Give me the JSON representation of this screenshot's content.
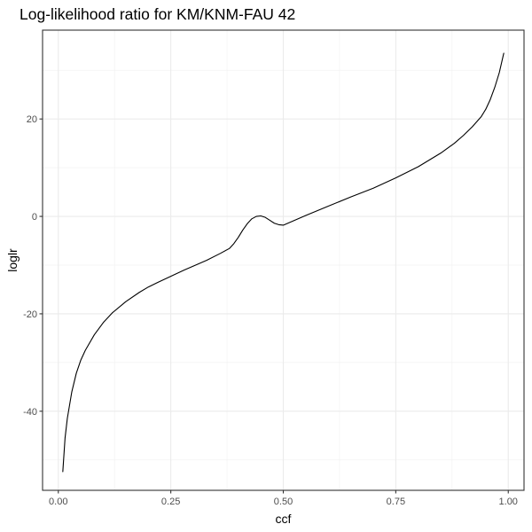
{
  "chart_data": {
    "type": "line",
    "title": "Log-likelihood ratio for KM/KNM-FAU 42",
    "xlabel": "ccf",
    "ylabel": "loglr",
    "xlim": [
      -0.035,
      1.035
    ],
    "ylim": [
      -56.24,
      38.24
    ],
    "x_ticks": [
      0.0,
      0.25,
      0.5,
      0.75,
      1.0
    ],
    "x_tick_labels": [
      "0.00",
      "0.25",
      "0.50",
      "0.75",
      "1.00"
    ],
    "y_ticks": [
      -40,
      -20,
      0,
      20
    ],
    "y_tick_labels": [
      "-40",
      "-20",
      "0",
      "20"
    ],
    "grid": true,
    "line_color": "#000000",
    "series": [
      {
        "x": [
          0.01,
          0.015,
          0.02,
          0.03,
          0.04,
          0.05,
          0.06,
          0.08,
          0.1,
          0.12,
          0.15,
          0.18,
          0.2,
          0.22,
          0.25,
          0.28,
          0.3,
          0.33,
          0.36,
          0.38,
          0.39,
          0.4,
          0.41,
          0.42,
          0.43,
          0.44,
          0.45,
          0.46,
          0.47,
          0.48,
          0.49,
          0.5,
          0.55,
          0.6,
          0.65,
          0.7,
          0.75,
          0.8,
          0.85,
          0.88,
          0.9,
          0.92,
          0.94,
          0.95,
          0.96,
          0.97,
          0.98,
          0.99
        ],
        "y": [
          -52.4,
          -45.5,
          -41.5,
          -36.0,
          -32.2,
          -29.5,
          -27.5,
          -24.3,
          -21.8,
          -19.8,
          -17.5,
          -15.6,
          -14.5,
          -13.6,
          -12.3,
          -11.0,
          -10.2,
          -9.0,
          -7.6,
          -6.6,
          -5.6,
          -4.3,
          -2.8,
          -1.5,
          -0.5,
          0.0,
          0.1,
          -0.2,
          -0.8,
          -1.4,
          -1.7,
          -1.8,
          0.2,
          2.1,
          4.0,
          5.8,
          7.9,
          10.2,
          13.0,
          15.0,
          16.6,
          18.4,
          20.5,
          22.0,
          24.0,
          26.5,
          29.5,
          33.5
        ]
      }
    ]
  }
}
